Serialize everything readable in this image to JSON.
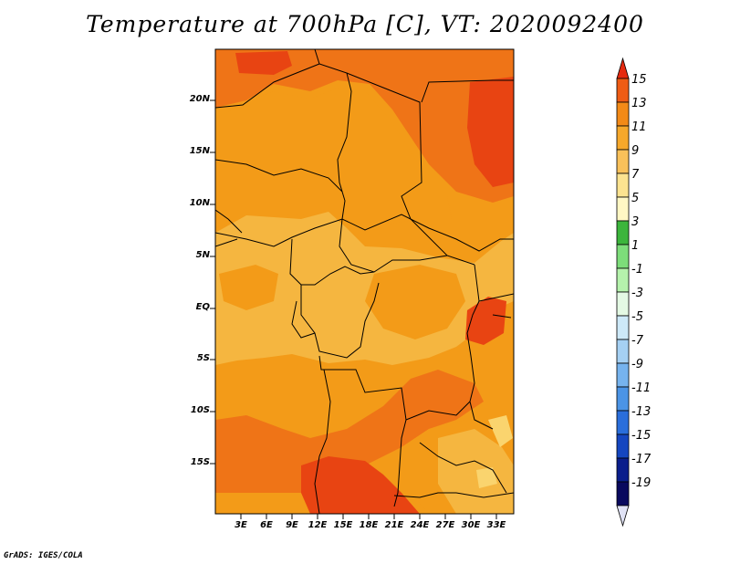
{
  "title": "Temperature at 700hPa [C], VT: 2020092400",
  "credit": "GrADS: IGES/COLA",
  "map": {
    "lat_labels": [
      "20N",
      "15N",
      "10N",
      "5N",
      "EQ",
      "5S",
      "10S",
      "15S"
    ],
    "lon_labels": [
      "3E",
      "6E",
      "9E",
      "12E",
      "15E",
      "18E",
      "21E",
      "24E",
      "27E",
      "30E",
      "33E"
    ],
    "field_colors": {
      "c7_9": "#f5b640",
      "c9_11": "#f39b18",
      "c11_13": "#ef7417",
      "c13_15": "#e84412",
      "c5_7": "#fad46e"
    }
  },
  "colorbar": {
    "labels": [
      "15",
      "13",
      "11",
      "9",
      "7",
      "5",
      "3",
      "1",
      "-1",
      "-3",
      "-5",
      "-7",
      "-9",
      "-11",
      "-13",
      "-15",
      "-17",
      "-19"
    ],
    "colors": [
      "#e52a0f",
      "#ef5c14",
      "#f38a17",
      "#f6a82b",
      "#f9c15a",
      "#fce390",
      "#fff7c4",
      "#3cb53c",
      "#7ddd7a",
      "#b5f2ac",
      "#e4f9e4",
      "#cde9f8",
      "#a5d0f3",
      "#76b3ee",
      "#4b94e6",
      "#2a6edb",
      "#1546c0",
      "#0a1e8c",
      "#09095e",
      "#e0e2f5"
    ]
  }
}
